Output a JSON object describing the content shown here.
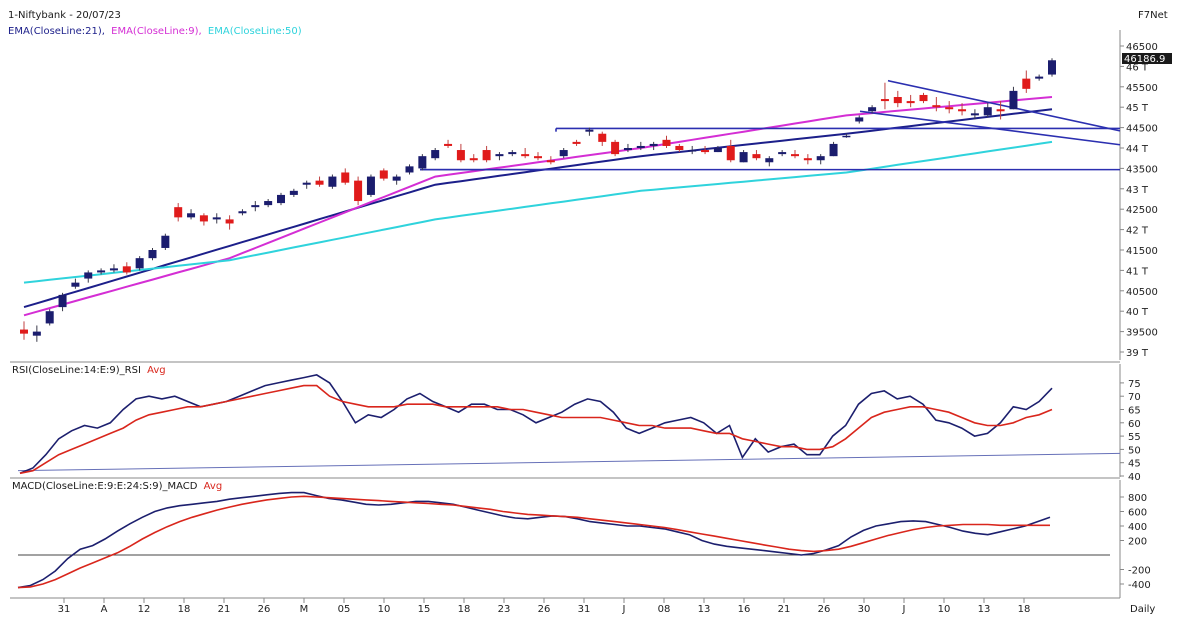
{
  "header": {
    "title": "1-Niftybank - 20/07/23",
    "brand": "F7Net",
    "ema_labels": [
      "EMA(CloseLine:21),",
      "EMA(CloseLine:9),",
      "EMA(CloseLine:50)"
    ],
    "last_price": "46186.9"
  },
  "colors": {
    "up": "#1b1d6e",
    "down": "#e01b1b",
    "ema21": "#1c1f8a",
    "ema9": "#d42ed4",
    "ema50": "#2fd3dc",
    "trendline": "#2b2fb0",
    "rsi": "#1c1f6e",
    "rsi_avg": "#d9261c",
    "grid_axis": "#888888"
  },
  "chart_data": [
    {
      "type": "candlestick",
      "title": "1-Niftybank - 20/07/23",
      "ylim": [
        39000,
        46800
      ],
      "yticks": [
        "46500",
        "46 T",
        "45500",
        "45 T",
        "44500",
        "44 T",
        "43500",
        "43 T",
        "42500",
        "42 T",
        "41500",
        "41 T",
        "40500",
        "40 T",
        "39500",
        "39 T"
      ],
      "ytick_values": [
        46500,
        46000,
        45500,
        45000,
        44500,
        44000,
        43500,
        43000,
        42500,
        42000,
        41500,
        41000,
        40500,
        40000,
        39500,
        39000
      ],
      "xticks": [
        "31",
        "A",
        "12",
        "18",
        "21",
        "26",
        "M",
        "05",
        "10",
        "15",
        "18",
        "23",
        "26",
        "31",
        "J",
        "08",
        "13",
        "16",
        "21",
        "26",
        "30",
        "J",
        "10",
        "13",
        "18"
      ],
      "xlabel": "Daily",
      "candles": [
        [
          39550,
          39750,
          39300,
          39450
        ],
        [
          39400,
          39650,
          39250,
          39500
        ],
        [
          39700,
          40050,
          39650,
          40000
        ],
        [
          40100,
          40450,
          40000,
          40400
        ],
        [
          40600,
          40800,
          40550,
          40700
        ],
        [
          40800,
          41000,
          40700,
          40950
        ],
        [
          40950,
          41050,
          40900,
          41000
        ],
        [
          41000,
          41150,
          40950,
          41050
        ],
        [
          41100,
          41200,
          40900,
          40950
        ],
        [
          41050,
          41350,
          41000,
          41300
        ],
        [
          41300,
          41550,
          41250,
          41500
        ],
        [
          41550,
          41900,
          41500,
          41850
        ],
        [
          42550,
          42650,
          42200,
          42300
        ],
        [
          42300,
          42500,
          42250,
          42400
        ],
        [
          42350,
          42400,
          42100,
          42200
        ],
        [
          42250,
          42400,
          42150,
          42300
        ],
        [
          42250,
          42350,
          42000,
          42150
        ],
        [
          42400,
          42500,
          42350,
          42450
        ],
        [
          42550,
          42700,
          42450,
          42600
        ],
        [
          42600,
          42750,
          42550,
          42700
        ],
        [
          42650,
          42900,
          42600,
          42850
        ],
        [
          42850,
          43000,
          42800,
          42950
        ],
        [
          43100,
          43200,
          43000,
          43150
        ],
        [
          43200,
          43300,
          43050,
          43100
        ],
        [
          43050,
          43350,
          43000,
          43300
        ],
        [
          43400,
          43500,
          43100,
          43150
        ],
        [
          43200,
          43300,
          42600,
          42700
        ],
        [
          42850,
          43350,
          42800,
          43300
        ],
        [
          43450,
          43500,
          43200,
          43250
        ],
        [
          43200,
          43350,
          43100,
          43300
        ],
        [
          43400,
          43600,
          43350,
          43550
        ],
        [
          43500,
          43850,
          43450,
          43800
        ],
        [
          43750,
          44000,
          43700,
          43950
        ],
        [
          44100,
          44200,
          44000,
          44050
        ],
        [
          43950,
          44100,
          43650,
          43700
        ],
        [
          43750,
          43850,
          43650,
          43700
        ],
        [
          43950,
          44050,
          43650,
          43700
        ],
        [
          43800,
          43900,
          43700,
          43850
        ],
        [
          43850,
          43950,
          43800,
          43900
        ],
        [
          43850,
          44000,
          43750,
          43800
        ],
        [
          43800,
          43900,
          43700,
          43750
        ],
        [
          43700,
          43800,
          43600,
          43650
        ],
        [
          43800,
          44000,
          43750,
          43950
        ],
        [
          44150,
          44200,
          44050,
          44100
        ],
        [
          44400,
          44500,
          44300,
          44450
        ],
        [
          44350,
          44400,
          44050,
          44150
        ],
        [
          44150,
          44200,
          43800,
          43850
        ],
        [
          43950,
          44100,
          43900,
          44000
        ],
        [
          44000,
          44150,
          43950,
          44050
        ],
        [
          44050,
          44150,
          43950,
          44100
        ],
        [
          44200,
          44300,
          44000,
          44050
        ],
        [
          44050,
          44100,
          43900,
          43950
        ],
        [
          43950,
          44050,
          43850,
          43950
        ],
        [
          43950,
          44050,
          43850,
          43900
        ],
        [
          43900,
          44050,
          43900,
          44000
        ],
        [
          44050,
          44200,
          43650,
          43700
        ],
        [
          43650,
          43950,
          43650,
          43900
        ],
        [
          43850,
          43950,
          43700,
          43750
        ],
        [
          43650,
          43800,
          43550,
          43750
        ],
        [
          43850,
          43950,
          43800,
          43900
        ],
        [
          43850,
          43950,
          43750,
          43800
        ],
        [
          43750,
          43850,
          43600,
          43700
        ],
        [
          43700,
          43850,
          43600,
          43800
        ],
        [
          43800,
          44150,
          43800,
          44100
        ],
        [
          44300,
          44350,
          44250,
          44300
        ],
        [
          44650,
          44800,
          44600,
          44750
        ],
        [
          44900,
          45050,
          44850,
          45000
        ],
        [
          45200,
          45600,
          44950,
          45150
        ],
        [
          45250,
          45400,
          45000,
          45100
        ],
        [
          45150,
          45300,
          45000,
          45100
        ],
        [
          45300,
          45350,
          45100,
          45150
        ],
        [
          45050,
          45250,
          44900,
          45000
        ],
        [
          45000,
          45150,
          44850,
          44950
        ],
        [
          44950,
          45100,
          44800,
          44900
        ],
        [
          44800,
          44950,
          44700,
          44850
        ],
        [
          44800,
          45100,
          44750,
          45000
        ],
        [
          44950,
          45150,
          44700,
          44900
        ],
        [
          44950,
          45500,
          44950,
          45400
        ],
        [
          45700,
          45900,
          45350,
          45450
        ],
        [
          45700,
          45800,
          45650,
          45750
        ],
        [
          45800,
          46200,
          45750,
          46150
        ]
      ],
      "ema_levels": {
        "EMA(CloseLine:21)": [
          40100,
          41600,
          43100,
          43800,
          44350,
          44950
        ],
        "EMA(CloseLine:9)": [
          39900,
          41300,
          43300,
          44000,
          44800,
          45250
        ],
        "EMA(CloseLine:50)": [
          40700,
          41250,
          42250,
          42950,
          43400,
          44150
        ]
      }
    },
    {
      "type": "line",
      "title": "RSI(CloseLine:14:E:9)_RSI Avg",
      "ylim": [
        40,
        78
      ],
      "yticks": [
        "75",
        "70",
        "65",
        "60",
        "55",
        "50",
        "45",
        "40"
      ],
      "ytick_values": [
        75,
        70,
        65,
        60,
        55,
        50,
        45,
        40
      ],
      "series": [
        {
          "name": "RSI",
          "values": [
            41,
            43,
            48,
            54,
            57,
            59,
            58,
            60,
            65,
            69,
            70,
            69,
            70,
            68,
            66,
            67,
            68,
            70,
            72,
            74,
            75,
            76,
            77,
            78,
            75,
            68,
            60,
            63,
            62,
            65,
            69,
            71,
            68,
            66,
            64,
            67,
            67,
            65,
            65,
            63,
            60,
            62,
            64,
            67,
            69,
            68,
            64,
            58,
            56,
            58,
            60,
            61,
            62,
            60,
            56,
            59,
            47,
            54,
            49,
            51,
            52,
            48,
            48,
            55,
            59,
            67,
            71,
            72,
            69,
            70,
            67,
            61,
            60,
            58,
            55,
            56,
            60,
            66,
            65,
            68,
            73
          ]
        },
        {
          "name": "Avg",
          "values": [
            41,
            42,
            45,
            48,
            50,
            52,
            54,
            56,
            58,
            61,
            63,
            64,
            65,
            66,
            66,
            67,
            68,
            69,
            70,
            71,
            72,
            73,
            74,
            74,
            70,
            68,
            67,
            66,
            66,
            66,
            67,
            67,
            67,
            66,
            66,
            66,
            66,
            66,
            65,
            65,
            64,
            63,
            62,
            62,
            62,
            62,
            61,
            60,
            59,
            59,
            58,
            58,
            58,
            57,
            56,
            56,
            54,
            53,
            52,
            51,
            51,
            50,
            50,
            51,
            54,
            58,
            62,
            64,
            65,
            66,
            66,
            65,
            64,
            62,
            60,
            59,
            59,
            60,
            62,
            63,
            65
          ]
        }
      ]
    },
    {
      "type": "line",
      "title": "MACD(CloseLine:E:9:E:24:S:9)_MACD Avg",
      "ylim": [
        -520,
        900
      ],
      "yticks": [
        "800",
        "600",
        "400",
        "200",
        "-200",
        "-400"
      ],
      "ytick_values": [
        800,
        600,
        400,
        200,
        -200,
        -400
      ],
      "series": [
        {
          "name": "MACD",
          "values": [
            -450,
            -420,
            -340,
            -220,
            -50,
            80,
            130,
            220,
            330,
            430,
            520,
            600,
            650,
            680,
            700,
            720,
            740,
            770,
            790,
            810,
            830,
            850,
            860,
            860,
            820,
            780,
            760,
            730,
            700,
            690,
            700,
            720,
            740,
            740,
            720,
            700,
            660,
            620,
            580,
            540,
            510,
            500,
            520,
            540,
            530,
            500,
            460,
            440,
            420,
            400,
            400,
            380,
            360,
            320,
            280,
            200,
            150,
            120,
            100,
            80,
            60,
            40,
            20,
            0,
            20,
            70,
            130,
            250,
            340,
            400,
            430,
            460,
            470,
            460,
            420,
            380,
            330,
            300,
            280,
            320,
            360,
            400,
            460,
            520
          ]
        },
        {
          "name": "Avg",
          "values": [
            -450,
            -440,
            -400,
            -340,
            -260,
            -180,
            -110,
            -40,
            30,
            120,
            220,
            310,
            390,
            460,
            520,
            570,
            620,
            660,
            700,
            730,
            760,
            780,
            800,
            810,
            800,
            790,
            780,
            770,
            760,
            750,
            740,
            730,
            720,
            710,
            700,
            690,
            670,
            650,
            630,
            600,
            580,
            560,
            550,
            540,
            530,
            520,
            500,
            480,
            460,
            440,
            420,
            400,
            380,
            350,
            320,
            290,
            260,
            230,
            200,
            170,
            140,
            110,
            80,
            60,
            50,
            60,
            80,
            120,
            170,
            220,
            270,
            310,
            350,
            380,
            400,
            410,
            420,
            420,
            420,
            410,
            410,
            410,
            410,
            410
          ]
        }
      ]
    }
  ],
  "panels": {
    "rsi_label_main": "RSI(CloseLine:14:E:9)_RSI",
    "rsi_label_avg": "Avg",
    "macd_label_main": "MACD(CloseLine:E:9:E:24:S:9)_MACD",
    "macd_label_avg": "Avg"
  }
}
